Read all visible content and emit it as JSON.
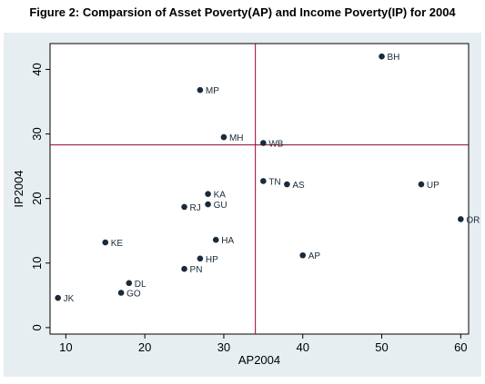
{
  "figure_title": "Figure 2: Comparsion of Asset Poverty(AP) and Income Poverty(IP) for 2004",
  "colors": {
    "plot_bg": "#ffffff",
    "outer_bg": "#e6eef2",
    "marker": "#1a2a3a",
    "reference_line": "#990033",
    "axis": "#000000"
  },
  "chart_data": {
    "type": "scatter",
    "title": "",
    "xlabel": "AP2004",
    "ylabel": "IP2004",
    "xlim": [
      8,
      61
    ],
    "ylim": [
      -1,
      44
    ],
    "xticks": [
      10,
      20,
      30,
      40,
      50,
      60
    ],
    "yticks": [
      0,
      10,
      20,
      30,
      40
    ],
    "reference_lines": {
      "x": 34,
      "y": 28.3
    },
    "grid": false,
    "points": [
      {
        "label": "BH",
        "x": 50,
        "y": 42
      },
      {
        "label": "MP",
        "x": 27,
        "y": 36.8
      },
      {
        "label": "MH",
        "x": 30,
        "y": 29.5
      },
      {
        "label": "WB",
        "x": 35,
        "y": 28.6
      },
      {
        "label": "TN",
        "x": 35,
        "y": 22.7
      },
      {
        "label": "AS",
        "x": 38,
        "y": 22.2
      },
      {
        "label": "UP",
        "x": 55,
        "y": 22.2
      },
      {
        "label": "KA",
        "x": 28,
        "y": 20.7
      },
      {
        "label": "GU",
        "x": 28,
        "y": 19.1
      },
      {
        "label": "RJ",
        "x": 25,
        "y": 18.7
      },
      {
        "label": "OR",
        "x": 60,
        "y": 16.8
      },
      {
        "label": "HA",
        "x": 29,
        "y": 13.6
      },
      {
        "label": "KE",
        "x": 15,
        "y": 13.2
      },
      {
        "label": "AP",
        "x": 40,
        "y": 11.2
      },
      {
        "label": "HP",
        "x": 27,
        "y": 10.7
      },
      {
        "label": "PN",
        "x": 25,
        "y": 9.1
      },
      {
        "label": "DL",
        "x": 18,
        "y": 6.9
      },
      {
        "label": "GO",
        "x": 17,
        "y": 5.4
      },
      {
        "label": "JK",
        "x": 9,
        "y": 4.6
      }
    ]
  }
}
